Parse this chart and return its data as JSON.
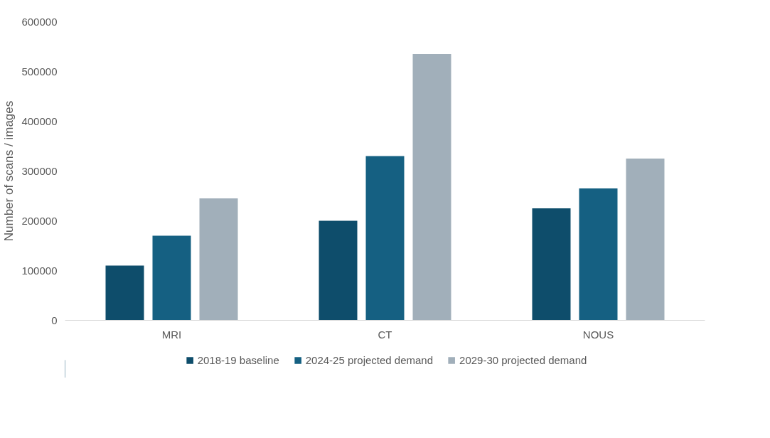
{
  "chart_data": {
    "type": "bar",
    "ylabel": "Number of scans / images",
    "categories": [
      "MRI",
      "CT",
      "NOUS"
    ],
    "series": [
      {
        "name": "2018-19 baseline",
        "color": "#0e4d6b",
        "values": [
          110000,
          200000,
          225000
        ]
      },
      {
        "name": "2024-25 projected demand",
        "color": "#156082",
        "values": [
          170000,
          330000,
          265000
        ]
      },
      {
        "name": "2029-30 projected demand",
        "color": "#a1afba",
        "values": [
          245000,
          535000,
          325000
        ]
      }
    ],
    "ylim": [
      0,
      600000
    ],
    "yticks": [
      0,
      100000,
      200000,
      300000,
      400000,
      500000,
      600000
    ],
    "grid": false,
    "legend": "bottom"
  }
}
